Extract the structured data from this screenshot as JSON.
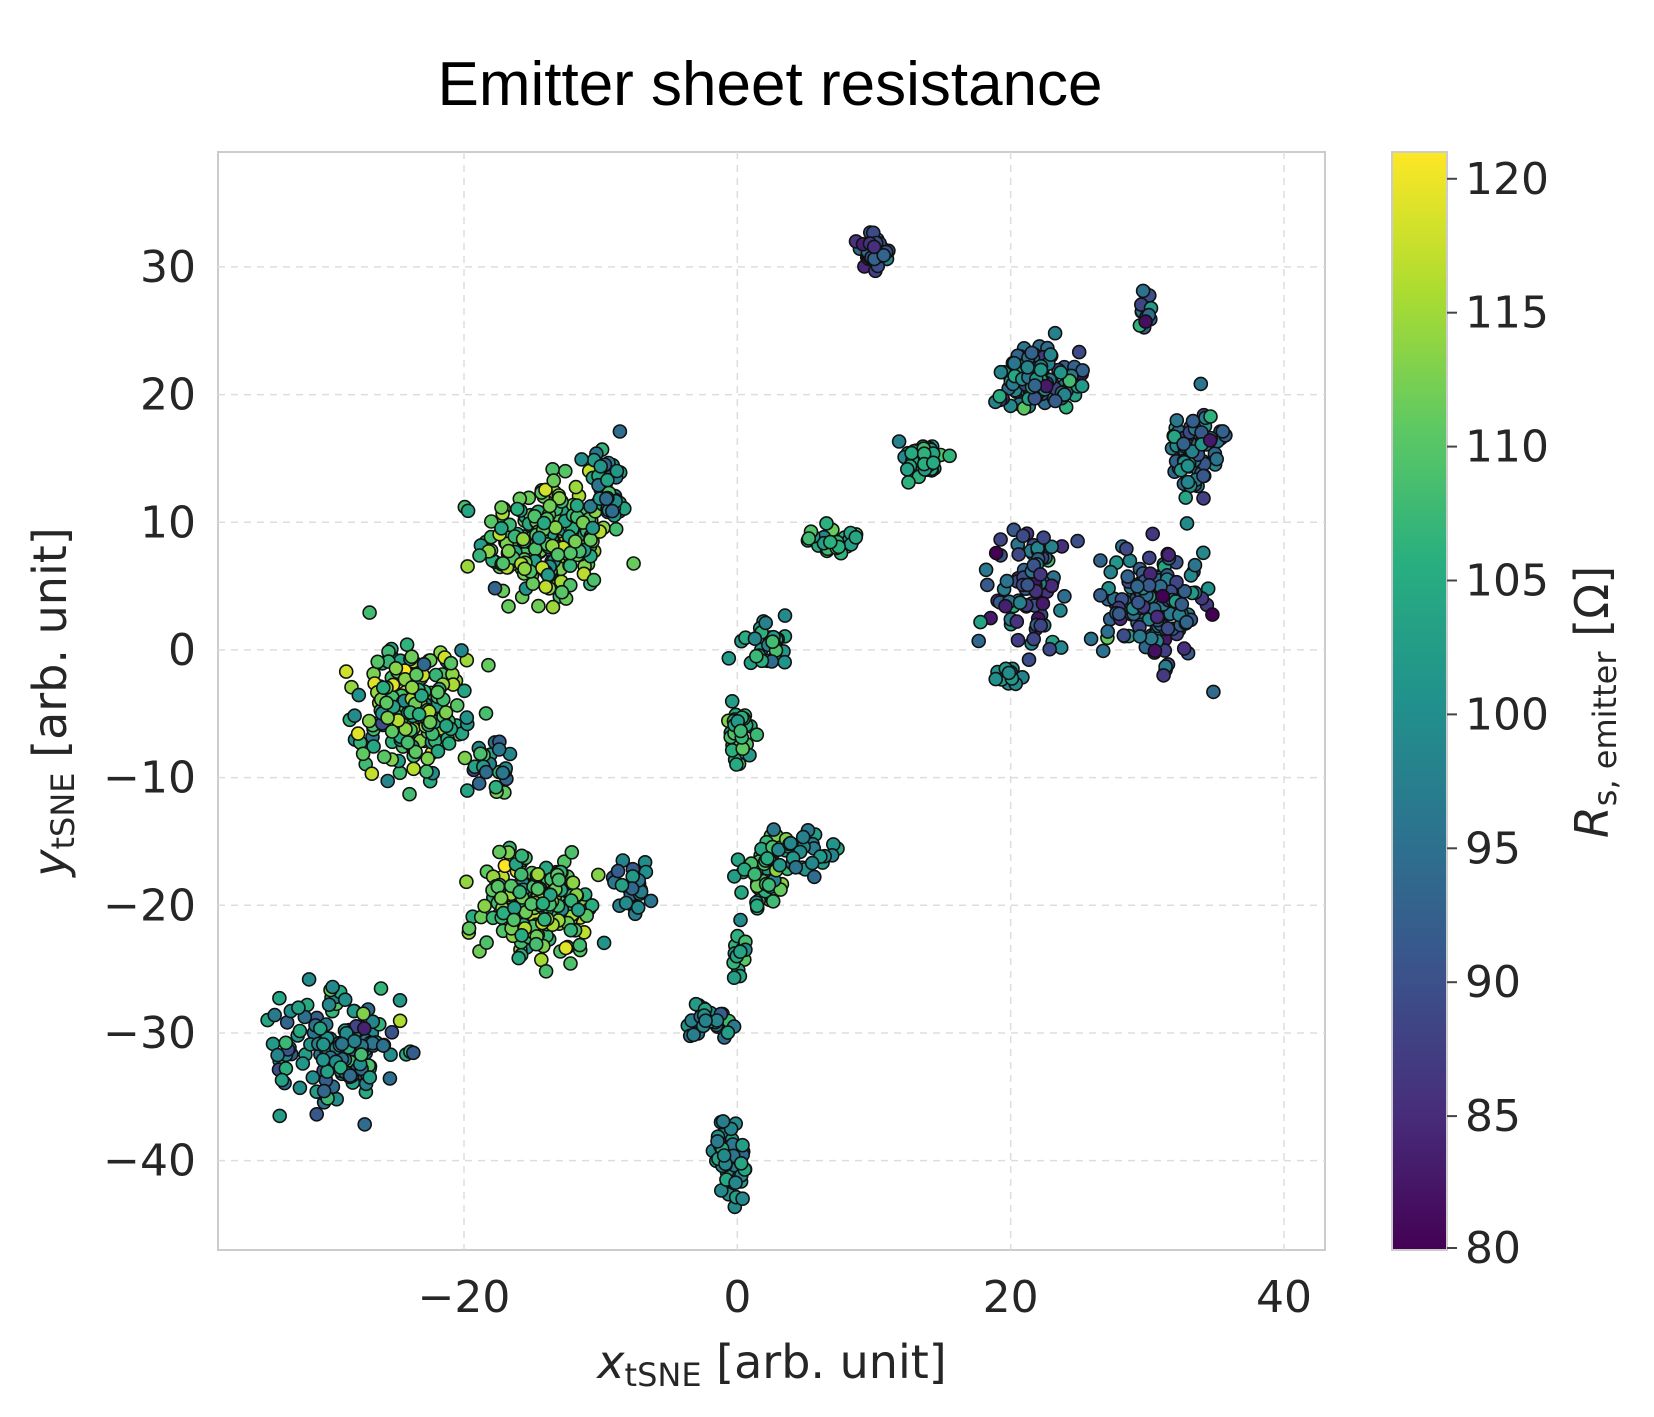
{
  "chart_data": {
    "type": "scatter",
    "title": "Emitter sheet resistance",
    "xlabel": {
      "main": "x",
      "sub": "tSNE",
      "rest": " [arb. unit]"
    },
    "ylabel": {
      "main": "y",
      "sub": "tSNE",
      "rest": " [arb. unit]"
    },
    "xlim": [
      -38,
      43
    ],
    "ylim": [
      -47,
      39
    ],
    "x_ticks": [
      -20,
      0,
      20,
      40
    ],
    "y_ticks": [
      -40,
      -30,
      -20,
      -10,
      0,
      10,
      20,
      30
    ],
    "x_tick_labels": [
      "−20",
      "0",
      "20",
      "40"
    ],
    "y_tick_labels": [
      "−40",
      "−30",
      "−20",
      "−10",
      "0",
      "10",
      "20",
      "30"
    ],
    "grid": true,
    "colormap": "viridis",
    "colorbar": {
      "label": {
        "main": "R",
        "sub": "s, emitter",
        "rest": " [Ω]"
      },
      "range": [
        80,
        121
      ],
      "ticks": [
        80,
        85,
        90,
        95,
        100,
        105,
        110,
        115,
        120
      ],
      "tick_labels": [
        "80",
        "85",
        "90",
        "95",
        "100",
        "105",
        "110",
        "115",
        "120"
      ]
    },
    "marker": {
      "edge_color": "#111111",
      "shape": "circle"
    },
    "clusters": [
      {
        "center": [
          -14.0,
          8.5
        ],
        "spread": [
          4.2,
          4.3
        ],
        "count": 230,
        "value_mean": 110,
        "value_sd": 4
      },
      {
        "center": [
          -9.5,
          12.5
        ],
        "spread": [
          1.2,
          3.0
        ],
        "count": 45,
        "value_mean": 99,
        "value_sd": 4
      },
      {
        "center": [
          -24.0,
          -4.5
        ],
        "spread": [
          3.5,
          4.5
        ],
        "count": 210,
        "value_mean": 109,
        "value_sd": 5
      },
      {
        "center": [
          -14.5,
          -20.0
        ],
        "spread": [
          3.8,
          3.4
        ],
        "count": 240,
        "value_mean": 110,
        "value_sd": 4
      },
      {
        "center": [
          -18.0,
          -9.5
        ],
        "spread": [
          1.5,
          2.5
        ],
        "count": 25,
        "value_mean": 103,
        "value_sd": 6
      },
      {
        "center": [
          -29.0,
          -31.0
        ],
        "spread": [
          4.0,
          4.2
        ],
        "count": 160,
        "value_mean": 100,
        "value_sd": 5
      },
      {
        "center": [
          -7.5,
          -18.5
        ],
        "spread": [
          1.3,
          2.0
        ],
        "count": 25,
        "value_mean": 97,
        "value_sd": 4
      },
      {
        "center": [
          2.0,
          -17.5
        ],
        "spread": [
          2.0,
          3.0
        ],
        "count": 55,
        "value_mean": 108,
        "value_sd": 4
      },
      {
        "center": [
          5.0,
          -15.5
        ],
        "spread": [
          1.6,
          1.4
        ],
        "count": 25,
        "value_mean": 100,
        "value_sd": 3
      },
      {
        "center": [
          0.0,
          -6.5
        ],
        "spread": [
          0.9,
          3.0
        ],
        "count": 30,
        "value_mean": 106,
        "value_sd": 3
      },
      {
        "center": [
          2.0,
          0.5
        ],
        "spread": [
          1.8,
          1.6
        ],
        "count": 30,
        "value_mean": 103,
        "value_sd": 4
      },
      {
        "center": [
          7.0,
          8.5
        ],
        "spread": [
          1.8,
          1.0
        ],
        "count": 30,
        "value_mean": 106,
        "value_sd": 3
      },
      {
        "center": [
          -2.0,
          -29.0
        ],
        "spread": [
          1.5,
          1.3
        ],
        "count": 30,
        "value_mean": 100,
        "value_sd": 4
      },
      {
        "center": [
          -0.5,
          -40.0
        ],
        "spread": [
          1.1,
          2.2
        ],
        "count": 50,
        "value_mean": 100,
        "value_sd": 3
      },
      {
        "center": [
          0.2,
          -24.0
        ],
        "spread": [
          0.6,
          1.8
        ],
        "count": 15,
        "value_mean": 105,
        "value_sd": 3
      },
      {
        "center": [
          10.0,
          31.5
        ],
        "spread": [
          1.2,
          1.4
        ],
        "count": 35,
        "value_mean": 88,
        "value_sd": 5
      },
      {
        "center": [
          13.5,
          15.0
        ],
        "spread": [
          1.5,
          1.3
        ],
        "count": 40,
        "value_mean": 104,
        "value_sd": 3
      },
      {
        "center": [
          22.0,
          21.5
        ],
        "spread": [
          3.0,
          2.3
        ],
        "count": 110,
        "value_mean": 96,
        "value_sd": 5
      },
      {
        "center": [
          21.5,
          5.0
        ],
        "spread": [
          2.6,
          4.5
        ],
        "count": 90,
        "value_mean": 92,
        "value_sd": 6
      },
      {
        "center": [
          30.5,
          3.5
        ],
        "spread": [
          3.3,
          4.0
        ],
        "count": 170,
        "value_mean": 93,
        "value_sd": 5
      },
      {
        "center": [
          33.5,
          15.5
        ],
        "spread": [
          1.8,
          3.2
        ],
        "count": 80,
        "value_mean": 95,
        "value_sd": 5
      },
      {
        "center": [
          30.0,
          26.5
        ],
        "spread": [
          0.7,
          1.4
        ],
        "count": 15,
        "value_mean": 98,
        "value_sd": 8
      },
      {
        "center": [
          20.0,
          -2.0
        ],
        "spread": [
          0.9,
          0.6
        ],
        "count": 12,
        "value_mean": 100,
        "value_sd": 3
      }
    ]
  }
}
